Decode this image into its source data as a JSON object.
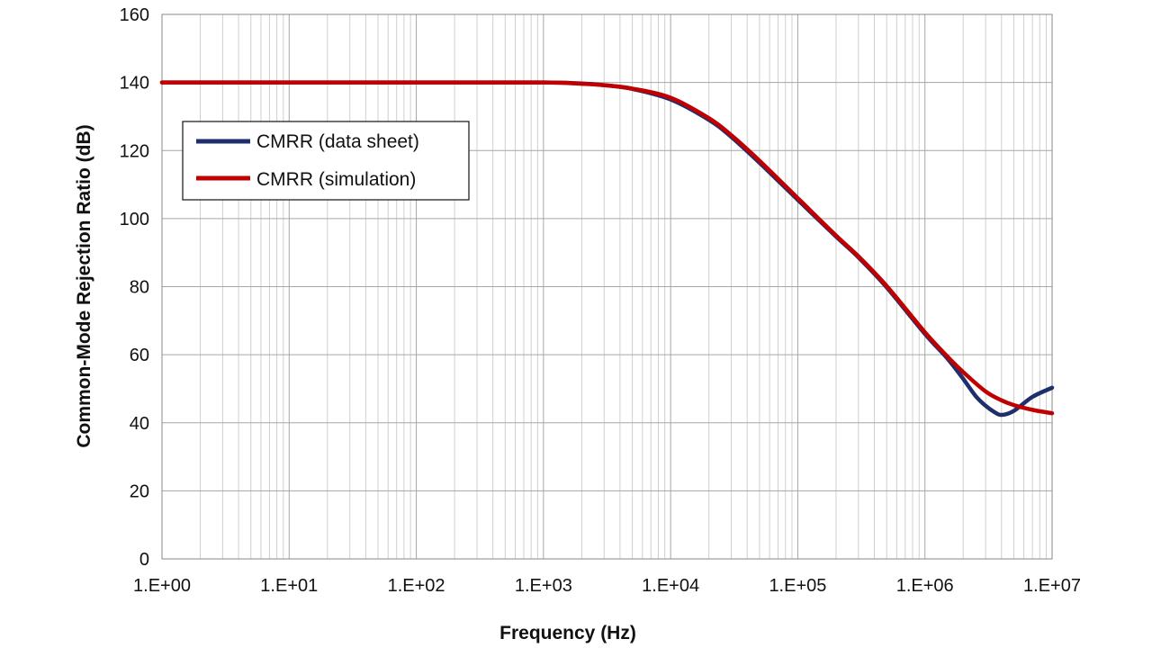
{
  "chart_data": {
    "type": "line",
    "title": "",
    "xlabel": "Frequency (Hz)",
    "ylabel": "Common-Mode Rejection Ratio (dB)",
    "x_scale": "log",
    "xlim": [
      1,
      10000000
    ],
    "ylim": [
      0,
      160
    ],
    "x_ticks": [
      1,
      10,
      100,
      1000,
      10000,
      100000,
      1000000,
      10000000
    ],
    "x_tick_labels": [
      "1.E+00",
      "1.E+01",
      "1.E+02",
      "1.E+03",
      "1.E+04",
      "1.E+05",
      "1.E+06",
      "1.E+07"
    ],
    "y_ticks": [
      0,
      20,
      40,
      60,
      80,
      100,
      120,
      140,
      160
    ],
    "y_tick_labels": [
      "0",
      "20",
      "40",
      "60",
      "80",
      "100",
      "120",
      "140",
      "160"
    ],
    "grid": true,
    "legend_position": "left",
    "series": [
      {
        "name": "CMRR (data sheet)",
        "color": "#1f2f6e",
        "x": [
          1,
          10,
          100,
          1000,
          2000,
          3000,
          5000,
          10000,
          20000,
          30000,
          50000,
          100000,
          200000,
          300000,
          500000,
          1000000,
          1500000,
          2000000,
          2500000,
          3000000,
          3500000,
          4000000,
          5000000,
          7000000,
          10000000
        ],
        "y": [
          140,
          140,
          140,
          140,
          139.7,
          139.2,
          138.1,
          135,
          129,
          124,
          116.4,
          105.5,
          94.7,
          88.6,
          79.8,
          66.1,
          58.9,
          52.9,
          47.9,
          45,
          43.2,
          42.3,
          43.5,
          47.6,
          50.3
        ]
      },
      {
        "name": "CMRR (simulation)",
        "color": "#c00000",
        "x": [
          1,
          10,
          100,
          1000,
          2000,
          3000,
          5000,
          10000,
          20000,
          30000,
          50000,
          100000,
          200000,
          300000,
          500000,
          1000000,
          1500000,
          2000000,
          3000000,
          4000000,
          5000000,
          7000000,
          10000000
        ],
        "y": [
          140,
          140,
          140,
          140,
          139.6,
          139.2,
          138.2,
          135.5,
          129.5,
          124.5,
          117,
          106,
          95,
          88.9,
          80.2,
          66.6,
          59.5,
          54.9,
          49.2,
          46.6,
          45.2,
          43.8,
          42.8
        ]
      }
    ]
  }
}
